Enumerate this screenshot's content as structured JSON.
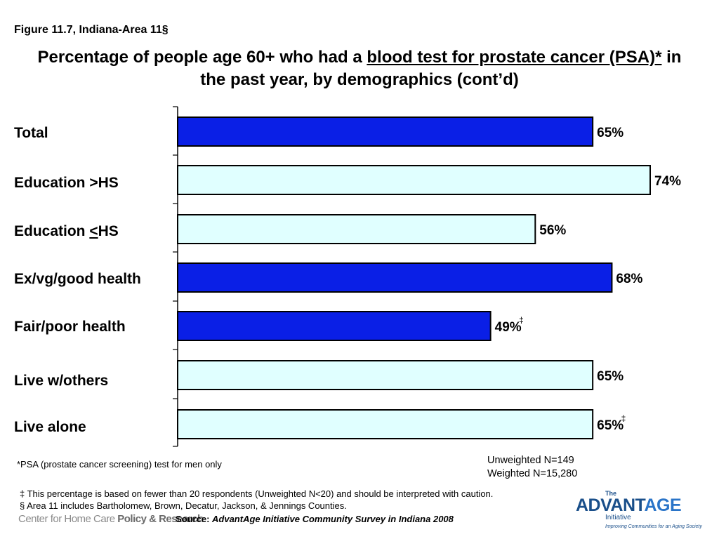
{
  "figure_label": "Figure 11.7, Indiana-Area 11§",
  "title": {
    "part1": "Percentage of people age 60+ who had a ",
    "underlined": "blood test for prostate cancer (PSA)*",
    "part2": " in the past year, by demographics (cont’d)"
  },
  "chart_data": {
    "type": "bar",
    "orientation": "horizontal",
    "categories": [
      "Total",
      "Education >HS",
      "Education <HS",
      "Ex/vg/good health",
      "Fair/poor health",
      "Live w/others",
      "Live alone"
    ],
    "values": [
      65,
      74,
      56,
      68,
      49,
      65,
      65
    ],
    "data_labels": [
      "65%",
      "74%",
      "56%",
      "68%",
      "49%",
      "65%",
      "65%"
    ],
    "caution_marks": [
      "",
      "",
      "",
      "",
      "‡",
      "",
      "‡"
    ],
    "bar_colors": [
      "#0a1fe6",
      "#e0ffff",
      "#e0ffff",
      "#0a1fe6",
      "#0a1fe6",
      "#e0ffff",
      "#e0ffff"
    ],
    "xlim": [
      0,
      100
    ],
    "grid": false
  },
  "categories_display": {
    "total": "Total",
    "edu_high": "Education >HS",
    "edu_low_prefix": "Education ",
    "edu_low_symbol": "<",
    "edu_low_suffix": "HS",
    "health_good": "Ex/vg/good health",
    "health_poor": "Fair/poor health",
    "live_others": "Live w/others",
    "live_alone": "Live alone"
  },
  "footnotes": {
    "psa": "*PSA (prostate cancer screening) test for men only",
    "unweighted": "Unweighted N=149",
    "weighted": "Weighted N=15,280",
    "caution": "‡ This percentage is based on fewer than 20 respondents (Unweighted N<20) and should be interpreted with caution.",
    "area": "§ Area 11 includes Bartholomew, Brown, Decatur, Jackson, & Jennings Counties."
  },
  "source": {
    "label": "Source: ",
    "text": "AdvantAge Initiative Community Survey in Indiana 2008"
  },
  "logos": {
    "left_part1": "Center for Home Care ",
    "left_part2": "Policy & Research",
    "right_the": "The",
    "right_adv": "ADVANT",
    "right_age": "AGE",
    "right_initiative": "Initiative",
    "right_tagline": "Improving Communities for an Aging Society"
  }
}
